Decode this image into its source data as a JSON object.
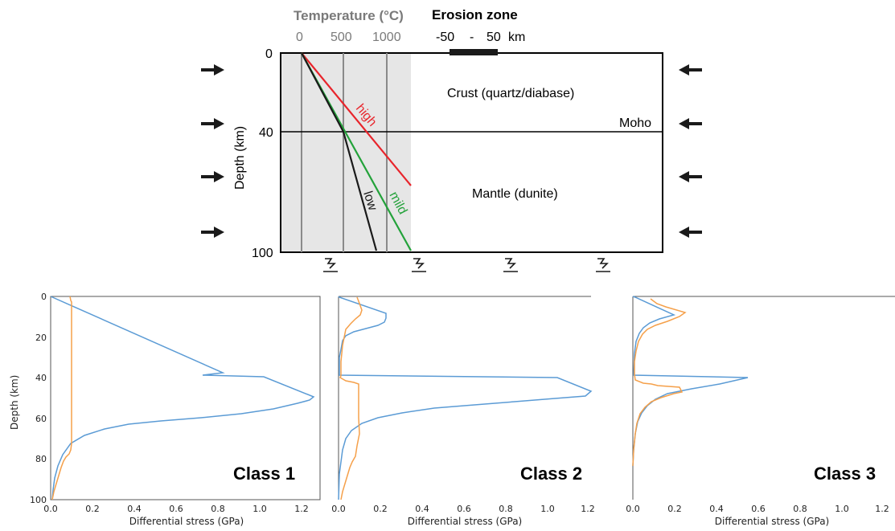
{
  "schematic": {
    "temperature_title": "Temperature (°C)",
    "temperature_ticks": [
      "0",
      "500",
      "1000"
    ],
    "erosion_title": "Erosion zone",
    "erosion_range": {
      "left": "-50",
      "dash": "-",
      "right": "50",
      "unit": "km"
    },
    "depth_label": "Depth (km)",
    "depth_ticks": [
      "0",
      "40",
      "100"
    ],
    "crust_label": "Crust (quartz/diabase)",
    "moho_label": "Moho",
    "mantle_label": "Mantle (dunite)",
    "geotherms": [
      {
        "name": "high",
        "color": "#e8242b"
      },
      {
        "name": "mild",
        "color": "#23a23a"
      },
      {
        "name": "low",
        "color": "#1a1a1a"
      }
    ],
    "shading_color": "#e6e6e6"
  },
  "panels": [
    {
      "class_label": "Class 1",
      "xlabel": "Differential stress (GPa)",
      "ylabel": "Depth (km)",
      "x_ticks": [
        "0.0",
        "0.2",
        "0.4",
        "0.6",
        "0.8",
        "1.0",
        "1.2"
      ],
      "y_ticks": [
        "0",
        "20",
        "40",
        "60",
        "80",
        "100"
      ]
    },
    {
      "class_label": "Class 2",
      "xlabel": "Differential stress (GPa)",
      "x_ticks": [
        "0.0",
        "0.2",
        "0.4",
        "0.6",
        "0.8",
        "1.0",
        "1.2"
      ]
    },
    {
      "class_label": "Class 3",
      "xlabel": "Differential stress (GPa)",
      "x_ticks": [
        "0.0",
        "0.2",
        "0.4",
        "0.6",
        "0.8",
        "1.0",
        "1.2"
      ]
    }
  ],
  "colors": {
    "blue_curve": "#5b9bd5",
    "orange_curve": "#f5a04a"
  }
}
